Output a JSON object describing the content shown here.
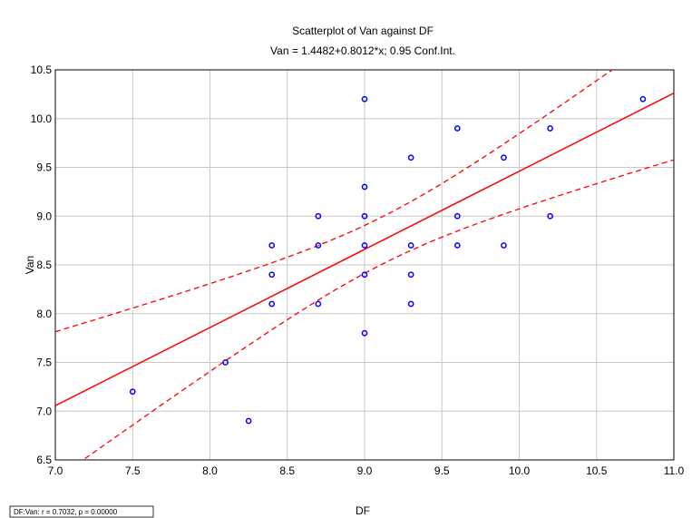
{
  "chart_data": {
    "type": "scatter",
    "title": "Scatterplot of Van against DF",
    "subtitle": "Van = 1.4482+0.8012*x; 0.95 Conf.Int.",
    "xlabel": "DF",
    "ylabel": "Van",
    "xlim": [
      7.0,
      11.0
    ],
    "ylim": [
      6.5,
      10.5
    ],
    "x_ticks": [
      "7.0",
      "7.5",
      "8.0",
      "8.5",
      "9.0",
      "9.5",
      "10.0",
      "10.5",
      "11.0"
    ],
    "y_ticks": [
      "6.5",
      "7.0",
      "7.5",
      "8.0",
      "8.5",
      "9.0",
      "9.5",
      "10.0",
      "10.5"
    ],
    "grid": true,
    "series": [
      {
        "points": [
          [
            7.5,
            7.2
          ],
          [
            8.1,
            7.5
          ],
          [
            8.25,
            6.9
          ],
          [
            8.4,
            8.7
          ],
          [
            8.4,
            8.4
          ],
          [
            8.4,
            8.1
          ],
          [
            8.7,
            9.0
          ],
          [
            8.7,
            8.7
          ],
          [
            8.7,
            8.1
          ],
          [
            9.0,
            10.2
          ],
          [
            9.0,
            9.3
          ],
          [
            9.0,
            9.0
          ],
          [
            9.0,
            8.7
          ],
          [
            9.0,
            8.4
          ],
          [
            9.0,
            7.8
          ],
          [
            9.3,
            9.6
          ],
          [
            9.3,
            8.7
          ],
          [
            9.3,
            8.4
          ],
          [
            9.3,
            8.1
          ],
          [
            9.6,
            9.9
          ],
          [
            9.6,
            9.0
          ],
          [
            9.6,
            8.7
          ],
          [
            9.9,
            9.6
          ],
          [
            9.9,
            8.7
          ],
          [
            10.2,
            9.9
          ],
          [
            10.2,
            9.0
          ],
          [
            10.8,
            10.2
          ]
        ],
        "color": "#0000ff",
        "marker": "circle"
      }
    ],
    "fit": {
      "intercept": 1.4482,
      "slope": 0.8012,
      "color": "#ff0000",
      "conf_level": 0.95
    },
    "annotation": "DF:Van:  r = 0.7032, p = 0.00000"
  }
}
